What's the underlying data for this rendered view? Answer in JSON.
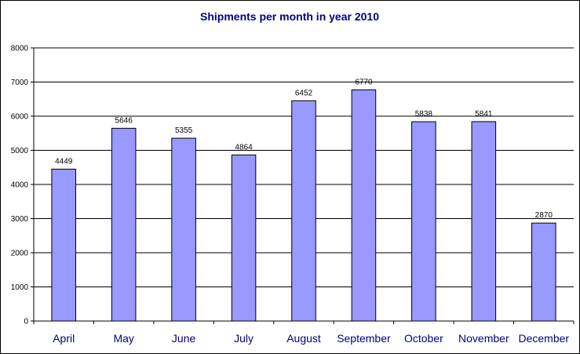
{
  "chart_data": {
    "type": "bar",
    "title": "Shipments per month in year 2010",
    "xlabel": "",
    "ylabel": "",
    "categories": [
      "April",
      "May",
      "June",
      "July",
      "August",
      "September",
      "October",
      "November",
      "December"
    ],
    "values": [
      4449,
      5646,
      5355,
      4864,
      6452,
      6770,
      5838,
      5841,
      2870
    ],
    "data_labels": [
      "4449",
      "5646",
      "5355",
      "4864",
      "6452",
      "6770",
      "5838",
      "5841",
      "2870"
    ],
    "ylim": [
      0,
      8000
    ],
    "yticks": [
      0,
      1000,
      2000,
      3000,
      4000,
      5000,
      6000,
      7000,
      8000
    ],
    "ytick_labels": [
      "0",
      "1000",
      "2000",
      "3000",
      "4000",
      "5000",
      "6000",
      "7000",
      "8000"
    ],
    "grid": true,
    "legend": "none",
    "colors": {
      "bar_fill": "#9999ff",
      "bar_stroke": "#000000",
      "title": "#000080",
      "category_label": "#000080",
      "gridline": "#000000"
    }
  }
}
